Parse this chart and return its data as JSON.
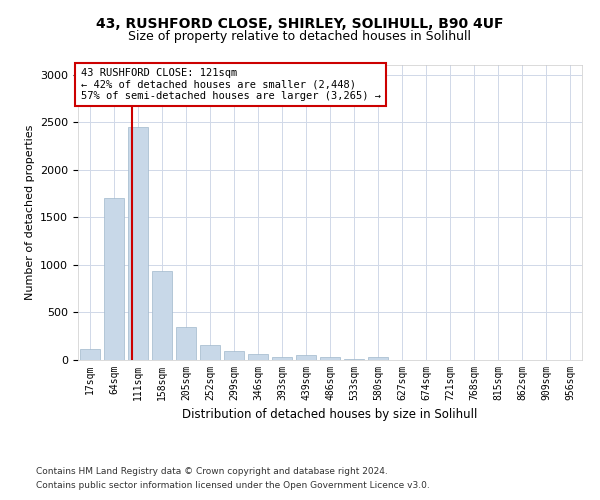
{
  "title1": "43, RUSHFORD CLOSE, SHIRLEY, SOLIHULL, B90 4UF",
  "title2": "Size of property relative to detached houses in Solihull",
  "xlabel": "Distribution of detached houses by size in Solihull",
  "ylabel": "Number of detached properties",
  "categories": [
    "17sqm",
    "64sqm",
    "111sqm",
    "158sqm",
    "205sqm",
    "252sqm",
    "299sqm",
    "346sqm",
    "393sqm",
    "439sqm",
    "486sqm",
    "533sqm",
    "580sqm",
    "627sqm",
    "674sqm",
    "721sqm",
    "768sqm",
    "815sqm",
    "862sqm",
    "909sqm",
    "956sqm"
  ],
  "values": [
    120,
    1700,
    2450,
    940,
    350,
    155,
    90,
    60,
    30,
    50,
    30,
    10,
    35,
    5,
    5,
    3,
    3,
    2,
    2,
    1,
    1
  ],
  "bar_color": "#c8d8e8",
  "bar_edgecolor": "#a0b8cc",
  "grid_color": "#d0d8e8",
  "property_sqm": 121,
  "annotation_text": "43 RUSHFORD CLOSE: 121sqm\n← 42% of detached houses are smaller (2,448)\n57% of semi-detached houses are larger (3,265) →",
  "annotation_box_color": "#ffffff",
  "annotation_box_edgecolor": "#cc0000",
  "footnote1": "Contains HM Land Registry data © Crown copyright and database right 2024.",
  "footnote2": "Contains public sector information licensed under the Open Government Licence v3.0.",
  "ylim": [
    0,
    3100
  ],
  "yticks": [
    0,
    500,
    1000,
    1500,
    2000,
    2500,
    3000
  ],
  "figsize": [
    6.0,
    5.0
  ],
  "dpi": 100
}
